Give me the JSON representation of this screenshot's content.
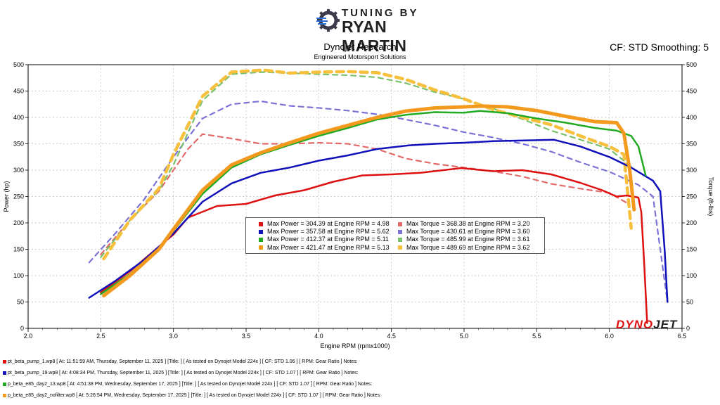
{
  "logo": {
    "line1": "TUNING BY",
    "line2": "RYAN MARTIN"
  },
  "header": {
    "title": "Dynojet Research",
    "subtitle": "Engineered Motorsport Solutions",
    "cf": "CF: STD Smoothing: 5"
  },
  "brand": {
    "dyno": "DYNO",
    "jet": "JET"
  },
  "chart_data": {
    "type": "line",
    "xlabel": "Engine RPM (rpmx1000)",
    "ylabel_left": "Power (hp)",
    "ylabel_right": "Torque (ft-lbs)",
    "xlim": [
      2.0,
      6.5
    ],
    "ylim": [
      0,
      500
    ],
    "x_ticks": [
      "2.0",
      "2.5",
      "3.0",
      "3.5",
      "4.0",
      "4.5",
      "5.0",
      "5.5",
      "6.0",
      "6.5"
    ],
    "y_ticks": [
      "0",
      "50",
      "100",
      "150",
      "200",
      "250",
      "300",
      "350",
      "400",
      "450",
      "500"
    ],
    "grid": true,
    "series": [
      {
        "color": "#dd1111",
        "dashed": false,
        "width": 2.5,
        "points": [
          [
            2.5,
            68
          ],
          [
            2.7,
            108
          ],
          [
            2.9,
            155
          ],
          [
            3.0,
            178
          ],
          [
            3.1,
            210
          ],
          [
            3.3,
            232
          ],
          [
            3.5,
            236
          ],
          [
            3.7,
            252
          ],
          [
            3.9,
            262
          ],
          [
            4.1,
            278
          ],
          [
            4.3,
            290
          ],
          [
            4.5,
            292
          ],
          [
            4.7,
            295
          ],
          [
            4.98,
            304
          ],
          [
            5.2,
            298
          ],
          [
            5.4,
            300
          ],
          [
            5.6,
            292
          ],
          [
            5.8,
            276
          ],
          [
            5.95,
            262
          ],
          [
            6.05,
            250
          ],
          [
            6.12,
            252
          ],
          [
            6.2,
            248
          ],
          [
            6.22,
            220
          ],
          [
            6.24,
            120
          ],
          [
            6.26,
            10
          ]
        ]
      },
      {
        "color": "#1111bb",
        "dashed": false,
        "width": 2.5,
        "points": [
          [
            2.42,
            58
          ],
          [
            2.6,
            90
          ],
          [
            2.8,
            130
          ],
          [
            3.0,
            180
          ],
          [
            3.2,
            240
          ],
          [
            3.4,
            275
          ],
          [
            3.6,
            295
          ],
          [
            3.8,
            305
          ],
          [
            4.0,
            318
          ],
          [
            4.2,
            328
          ],
          [
            4.4,
            340
          ],
          [
            4.62,
            347
          ],
          [
            4.8,
            350
          ],
          [
            5.0,
            352
          ],
          [
            5.2,
            355
          ],
          [
            5.62,
            357.6
          ],
          [
            5.8,
            345
          ],
          [
            6.0,
            325
          ],
          [
            6.15,
            305
          ],
          [
            6.3,
            280
          ],
          [
            6.35,
            260
          ],
          [
            6.38,
            150
          ],
          [
            6.4,
            50
          ]
        ]
      },
      {
        "color": "#22aa22",
        "dashed": false,
        "width": 2.5,
        "points": [
          [
            2.5,
            65
          ],
          [
            2.7,
            103
          ],
          [
            2.9,
            150
          ],
          [
            3.0,
            185
          ],
          [
            3.2,
            255
          ],
          [
            3.4,
            305
          ],
          [
            3.6,
            330
          ],
          [
            3.8,
            348
          ],
          [
            4.0,
            365
          ],
          [
            4.2,
            380
          ],
          [
            4.4,
            396
          ],
          [
            4.6,
            405
          ],
          [
            4.8,
            410
          ],
          [
            5.0,
            409
          ],
          [
            5.11,
            412.4
          ],
          [
            5.3,
            408
          ],
          [
            5.5,
            398
          ],
          [
            5.7,
            390
          ],
          [
            5.9,
            380
          ],
          [
            6.05,
            375
          ],
          [
            6.15,
            365
          ],
          [
            6.2,
            345
          ],
          [
            6.25,
            290
          ]
        ]
      },
      {
        "color": "#f39a1e",
        "dashed": false,
        "width": 5,
        "points": [
          [
            2.52,
            62
          ],
          [
            2.7,
            100
          ],
          [
            2.9,
            150
          ],
          [
            3.0,
            188
          ],
          [
            3.2,
            262
          ],
          [
            3.4,
            310
          ],
          [
            3.6,
            333
          ],
          [
            3.8,
            352
          ],
          [
            4.0,
            370
          ],
          [
            4.2,
            385
          ],
          [
            4.4,
            400
          ],
          [
            4.6,
            412
          ],
          [
            4.8,
            418
          ],
          [
            5.0,
            420
          ],
          [
            5.13,
            421.5
          ],
          [
            5.3,
            420
          ],
          [
            5.5,
            413
          ],
          [
            5.7,
            402
          ],
          [
            5.9,
            392
          ],
          [
            6.05,
            390
          ],
          [
            6.1,
            370
          ],
          [
            6.14,
            300
          ],
          [
            6.17,
            225
          ]
        ]
      },
      {
        "color": "#e46a6a",
        "dashed": true,
        "width": 2.2,
        "points": [
          [
            2.5,
            140
          ],
          [
            2.7,
            205
          ],
          [
            2.9,
            260
          ],
          [
            3.1,
            340
          ],
          [
            3.2,
            368.4
          ],
          [
            3.4,
            360
          ],
          [
            3.6,
            350
          ],
          [
            3.8,
            350
          ],
          [
            4.0,
            352
          ],
          [
            4.2,
            350
          ],
          [
            4.4,
            340
          ],
          [
            4.6,
            322
          ],
          [
            4.8,
            312
          ],
          [
            5.0,
            305
          ],
          [
            5.2,
            298
          ],
          [
            5.4,
            288
          ],
          [
            5.6,
            274
          ],
          [
            5.8,
            265
          ],
          [
            6.0,
            257
          ],
          [
            6.12,
            238
          ]
        ]
      },
      {
        "color": "#7b73d6",
        "dashed": true,
        "width": 2.2,
        "points": [
          [
            2.42,
            125
          ],
          [
            2.6,
            180
          ],
          [
            2.8,
            245
          ],
          [
            3.0,
            325
          ],
          [
            3.2,
            398
          ],
          [
            3.4,
            425
          ],
          [
            3.6,
            430.6
          ],
          [
            3.8,
            422
          ],
          [
            4.0,
            418
          ],
          [
            4.2,
            413
          ],
          [
            4.4,
            406
          ],
          [
            4.6,
            396
          ],
          [
            4.8,
            385
          ],
          [
            5.0,
            372
          ],
          [
            5.2,
            362
          ],
          [
            5.4,
            350
          ],
          [
            5.6,
            335
          ],
          [
            5.8,
            315
          ],
          [
            6.0,
            297
          ],
          [
            6.2,
            272
          ],
          [
            6.3,
            250
          ],
          [
            6.4,
            50
          ]
        ]
      },
      {
        "color": "#79c06b",
        "dashed": true,
        "width": 2.2,
        "points": [
          [
            2.5,
            135
          ],
          [
            2.7,
            205
          ],
          [
            2.9,
            262
          ],
          [
            3.0,
            310
          ],
          [
            3.2,
            432
          ],
          [
            3.4,
            482
          ],
          [
            3.61,
            486
          ],
          [
            3.8,
            484
          ],
          [
            4.0,
            482
          ],
          [
            4.2,
            480
          ],
          [
            4.4,
            476
          ],
          [
            4.6,
            465
          ],
          [
            4.8,
            448
          ],
          [
            5.0,
            435
          ],
          [
            5.2,
            417
          ],
          [
            5.4,
            397
          ],
          [
            5.6,
            375
          ],
          [
            5.8,
            358
          ],
          [
            6.0,
            340
          ],
          [
            6.18,
            300
          ]
        ]
      },
      {
        "color": "#f6bf3c",
        "dashed": true,
        "width": 4.5,
        "points": [
          [
            2.52,
            132
          ],
          [
            2.7,
            205
          ],
          [
            2.9,
            265
          ],
          [
            3.0,
            330
          ],
          [
            3.2,
            440
          ],
          [
            3.4,
            486
          ],
          [
            3.62,
            489.7
          ],
          [
            3.8,
            484
          ],
          [
            4.0,
            486
          ],
          [
            4.2,
            487
          ],
          [
            4.4,
            485
          ],
          [
            4.6,
            472
          ],
          [
            4.8,
            452
          ],
          [
            5.0,
            435
          ],
          [
            5.2,
            415
          ],
          [
            5.4,
            400
          ],
          [
            5.6,
            386
          ],
          [
            5.8,
            365
          ],
          [
            6.0,
            345
          ],
          [
            6.1,
            330
          ],
          [
            6.15,
            190
          ]
        ]
      }
    ],
    "legend": [
      {
        "color": "#dd1111",
        "text": "Max Power = 304.39 at Engine RPM = 4.98"
      },
      {
        "color": "#1111bb",
        "text": "Max Power = 357.58 at Engine RPM = 5.62"
      },
      {
        "color": "#22aa22",
        "text": "Max Power = 412.37 at Engine RPM = 5.11"
      },
      {
        "color": "#f39a1e",
        "text": "Max Power = 421.47 at Engine RPM = 5.13"
      },
      {
        "color": "#e46a6a",
        "text": "Max Torque = 368.38 at Engine RPM = 3.20"
      },
      {
        "color": "#7b73d6",
        "text": "Max Torque = 430.61 at Engine RPM = 3.60"
      },
      {
        "color": "#79c06b",
        "text": "Max Torque = 485.99 at Engine RPM = 3.61"
      },
      {
        "color": "#f6bf3c",
        "text": "Max Torque = 489.69 at Engine RPM = 3.62"
      }
    ]
  },
  "files": [
    {
      "color": "#dd1111",
      "text": "pt_beta_pump_1.wp8 [ At: 11:51:59 AM, Thursday, September 11, 2025 ] [Title: ] [ As tested on Dynojet Model 224x ] [ CF: STD 1.06 ] [ RPM: Gear Ratio ] Notes:"
    },
    {
      "color": "#1111bb",
      "text": "pt_beta_pump_19.wp8 [ At: 4:08:34 PM, Thursday, September 11, 2025 ] [Title: ] [ As tested on Dynojet Model 224x ] [ CF: STD 1.07 ] [ RPM: Gear Ratio ] Notes:"
    },
    {
      "color": "#22aa22",
      "text": "p_beta_e85_day2_13.wp8 [ At: 4:51:38 PM, Wednesday, September 17, 2025 ] [Title: ] [ As tested on Dynojet Model 224x ] [ CF: STD 1.07 ] [ RPM: Gear Ratio ] Notes:"
    },
    {
      "color": "#f39a1e",
      "text": "p_beta_e85_day2_nofilter.wp8 [ At: 5:26:54 PM, Wednesday, September 17, 2025 ] [Title: ] [ As tested on Dynojet Model 224x ] [ CF: STD 1.07 ] [ RPM: Gear Ratio ] Notes:"
    }
  ]
}
